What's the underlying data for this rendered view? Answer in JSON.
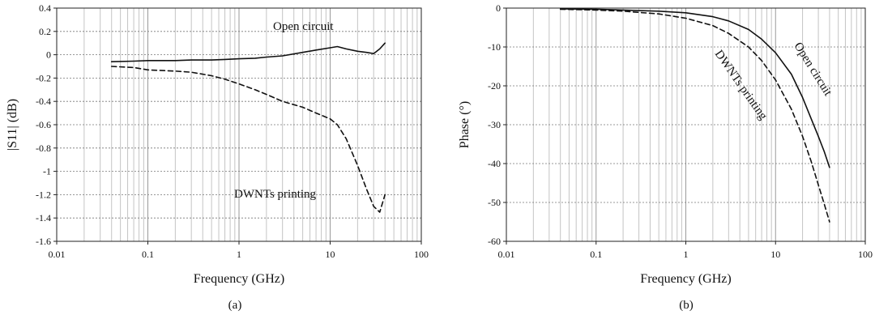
{
  "chart_data": [
    {
      "type": "line",
      "panel_label": "(a)",
      "xlabel": "Frequency (GHz)",
      "ylabel": "|S11| (dB)",
      "xscale": "log",
      "xlim": [
        0.01,
        100
      ],
      "ylim": [
        -1.6,
        0.4
      ],
      "x_tick_labels": [
        "0.01",
        "0.1",
        "1",
        "10",
        "100"
      ],
      "x_tick_values": [
        0.01,
        0.1,
        1,
        10,
        100
      ],
      "y_tick_labels": [
        "0.4",
        "0.2",
        "0",
        "-0.2",
        "-0.4",
        "-0.6",
        "-0.8",
        "-1",
        "-1.2",
        "-1.4",
        "-1.6"
      ],
      "y_tick_values": [
        0.4,
        0.2,
        0,
        -0.2,
        -0.4,
        -0.6,
        -0.8,
        -1,
        -1.2,
        -1.4,
        -1.6
      ],
      "grid": true,
      "series": [
        {
          "name": "Open circuit",
          "style": "solid",
          "x": [
            0.04,
            0.07,
            0.1,
            0.2,
            0.3,
            0.5,
            0.7,
            1,
            1.5,
            2,
            3,
            5,
            7,
            10,
            12,
            15,
            20,
            25,
            30,
            35,
            40
          ],
          "y": [
            -0.06,
            -0.055,
            -0.05,
            -0.05,
            -0.045,
            -0.045,
            -0.04,
            -0.035,
            -0.03,
            -0.02,
            -0.01,
            0.02,
            0.04,
            0.06,
            0.07,
            0.05,
            0.03,
            0.02,
            0.01,
            0.05,
            0.1
          ]
        },
        {
          "name": "DWNTs printing",
          "style": "dashed",
          "x": [
            0.04,
            0.07,
            0.1,
            0.2,
            0.3,
            0.5,
            0.7,
            1,
            1.5,
            2,
            3,
            5,
            7,
            10,
            12,
            15,
            20,
            25,
            30,
            35,
            40
          ],
          "y": [
            -0.1,
            -0.11,
            -0.13,
            -0.14,
            -0.15,
            -0.18,
            -0.21,
            -0.25,
            -0.3,
            -0.34,
            -0.4,
            -0.45,
            -0.5,
            -0.55,
            -0.6,
            -0.72,
            -0.95,
            -1.15,
            -1.3,
            -1.35,
            -1.2
          ]
        }
      ],
      "annotations": [
        "Open circuit",
        "DWNTs printing"
      ]
    },
    {
      "type": "line",
      "panel_label": "(b)",
      "xlabel": "Frequency (GHz)",
      "ylabel": "Phase (°)",
      "xscale": "log",
      "xlim": [
        0.01,
        100
      ],
      "ylim": [
        -60,
        0
      ],
      "x_tick_labels": [
        "0.01",
        "0.1",
        "1",
        "10",
        "100"
      ],
      "x_tick_values": [
        0.01,
        0.1,
        1,
        10,
        100
      ],
      "y_tick_labels": [
        "0",
        "-10",
        "-20",
        "-30",
        "-40",
        "-50",
        "-60"
      ],
      "y_tick_values": [
        0,
        -10,
        -20,
        -30,
        -40,
        -50,
        -60
      ],
      "grid": true,
      "series": [
        {
          "name": "Open circuit",
          "style": "solid",
          "x": [
            0.04,
            0.1,
            0.2,
            0.5,
            1,
            2,
            3,
            5,
            7,
            10,
            15,
            20,
            25,
            30,
            35,
            40
          ],
          "y": [
            -0.2,
            -0.3,
            -0.5,
            -0.8,
            -1.2,
            -2.2,
            -3.3,
            -5.5,
            -8,
            -11.5,
            -17,
            -23,
            -28.5,
            -33,
            -37,
            -41
          ]
        },
        {
          "name": "DWNTs printing",
          "style": "dashed",
          "x": [
            0.04,
            0.1,
            0.2,
            0.5,
            1,
            2,
            3,
            5,
            7,
            10,
            15,
            20,
            25,
            30,
            35,
            40
          ],
          "y": [
            -0.3,
            -0.5,
            -0.8,
            -1.5,
            -2.6,
            -4.5,
            -6.5,
            -10,
            -13.5,
            -18.5,
            -26,
            -33,
            -39.5,
            -45.5,
            -50.5,
            -55
          ]
        }
      ],
      "annotations": [
        "Open circuit",
        "DWNTs printing"
      ]
    }
  ]
}
